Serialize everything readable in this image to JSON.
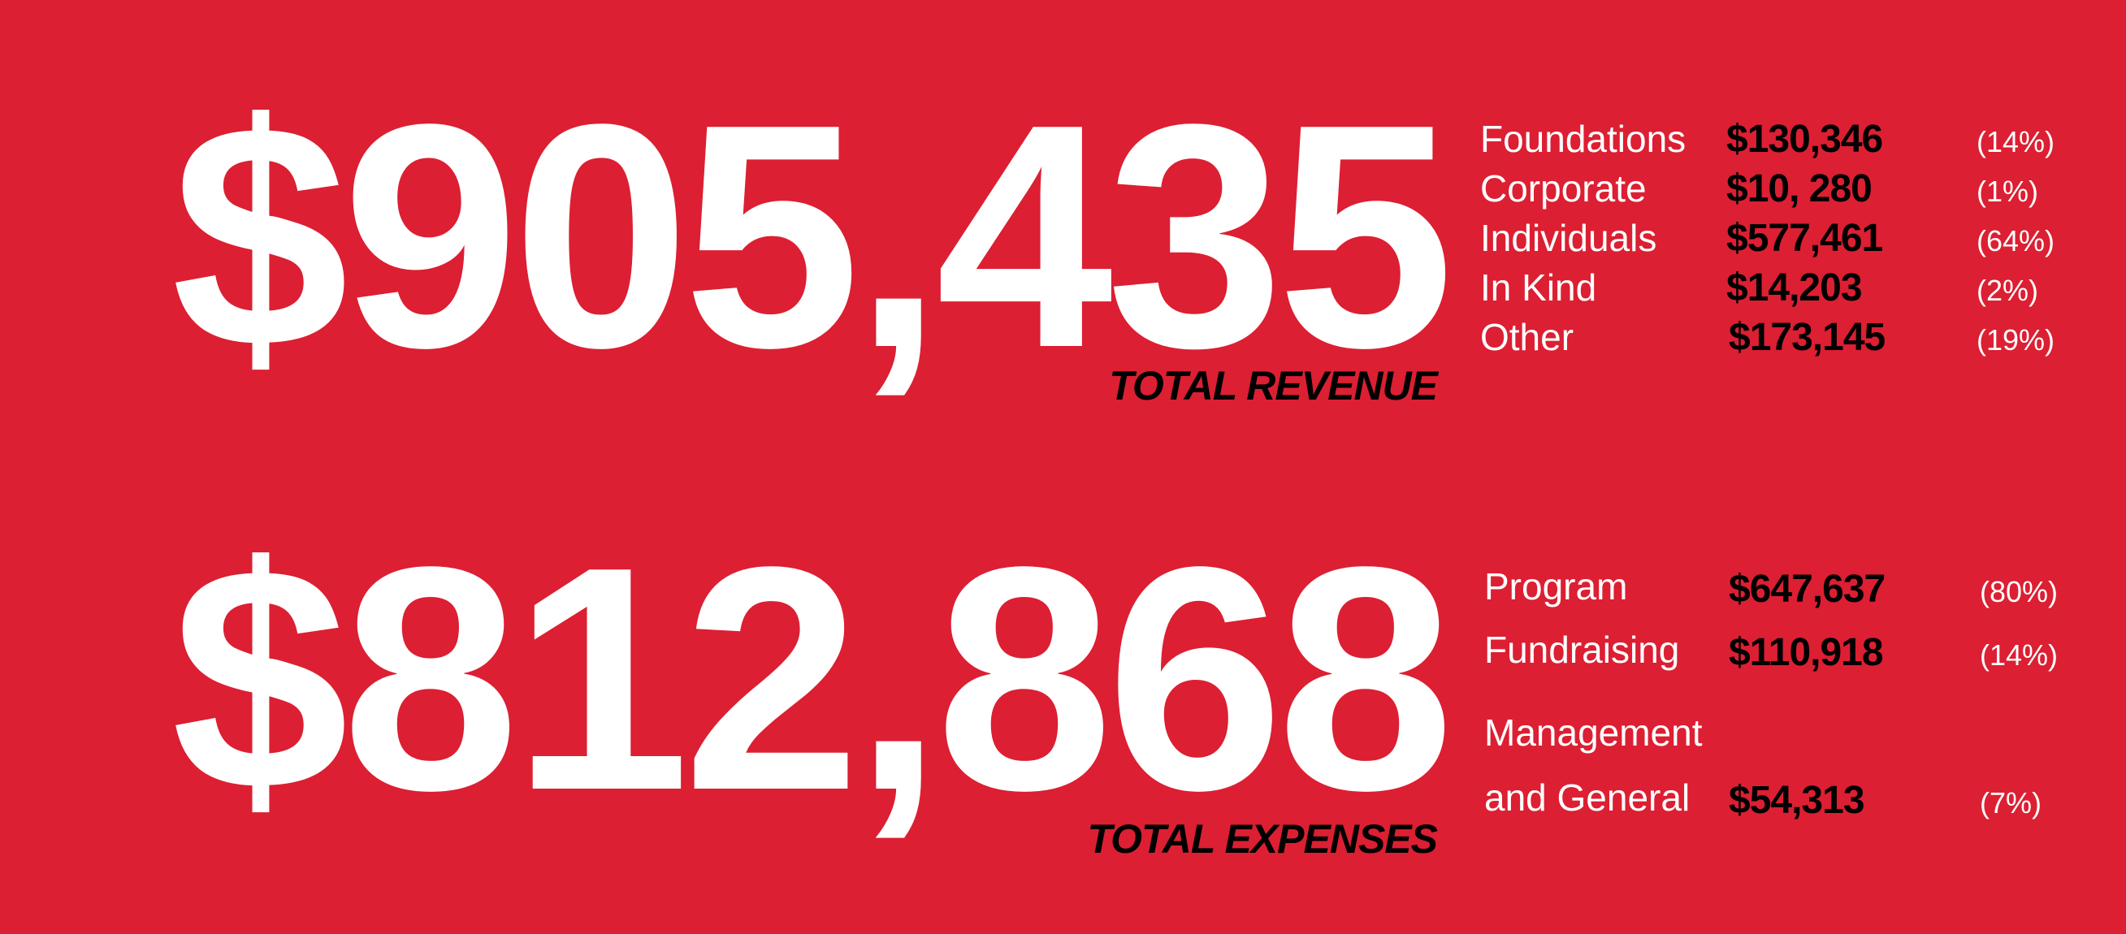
{
  "revenue": {
    "total": "$905,435",
    "label": "TOTAL REVENUE",
    "items": [
      {
        "label": "Foundations",
        "amount": "$130,346",
        "percent": "(14%)"
      },
      {
        "label": "Corporate",
        "amount": "$10, 280",
        "percent": "(1%)"
      },
      {
        "label": "Individuals",
        "amount": "$577,461",
        "percent": "(64%)"
      },
      {
        "label": "In Kind",
        "amount": "$14,203",
        "percent": "(2%)"
      },
      {
        "label": "Other",
        "amount": "$173,145",
        "percent": "(19%)"
      }
    ]
  },
  "expenses": {
    "total": "$812,868",
    "label": "TOTAL EXPENSES",
    "items": [
      {
        "label": "Program",
        "amount": "$647,637",
        "percent": "(80%)"
      },
      {
        "label": "Fundraising",
        "amount": "$110,918",
        "percent": "(14%)"
      },
      {
        "label": "Management and General",
        "amount": "$54,313",
        "percent": "(7%)"
      }
    ]
  }
}
